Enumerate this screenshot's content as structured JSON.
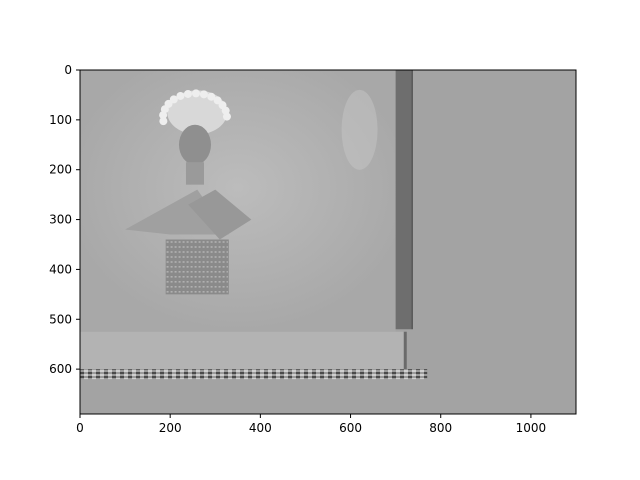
{
  "chart_data": {
    "type": "image",
    "title": "",
    "xlabel": "",
    "ylabel": "",
    "xlim": [
      0,
      1100
    ],
    "ylim": [
      690,
      0
    ],
    "xticks": [
      0,
      200,
      400,
      600,
      800,
      1000
    ],
    "yticks": [
      0,
      100,
      200,
      300,
      400,
      500,
      600
    ],
    "xtick_labels": [
      "0",
      "200",
      "400",
      "600",
      "800",
      "1000"
    ],
    "ytick_labels": [
      "0",
      "100",
      "200",
      "300",
      "400",
      "500",
      "600"
    ],
    "colormap": "gray",
    "background_color": "#a3a3a3",
    "grid": false,
    "legend": "none",
    "regions": [
      {
        "name": "photo-area",
        "x": [
          0,
          700
        ],
        "y": [
          0,
          525
        ],
        "color": "#b0b0b0"
      },
      {
        "name": "dark-vertical-band",
        "x": [
          700,
          735
        ],
        "y": [
          0,
          520
        ],
        "color": "#6e6e6e"
      },
      {
        "name": "striped-bottom-band",
        "x": [
          0,
          770
        ],
        "y": [
          600,
          620
        ],
        "color": "#5a5a5a"
      },
      {
        "name": "light-lower-strip",
        "x": [
          0,
          720
        ],
        "y": [
          525,
          600
        ],
        "color": "#b3b3b3"
      }
    ],
    "image_description_icon": "grayscale-photo-of-dancer"
  }
}
